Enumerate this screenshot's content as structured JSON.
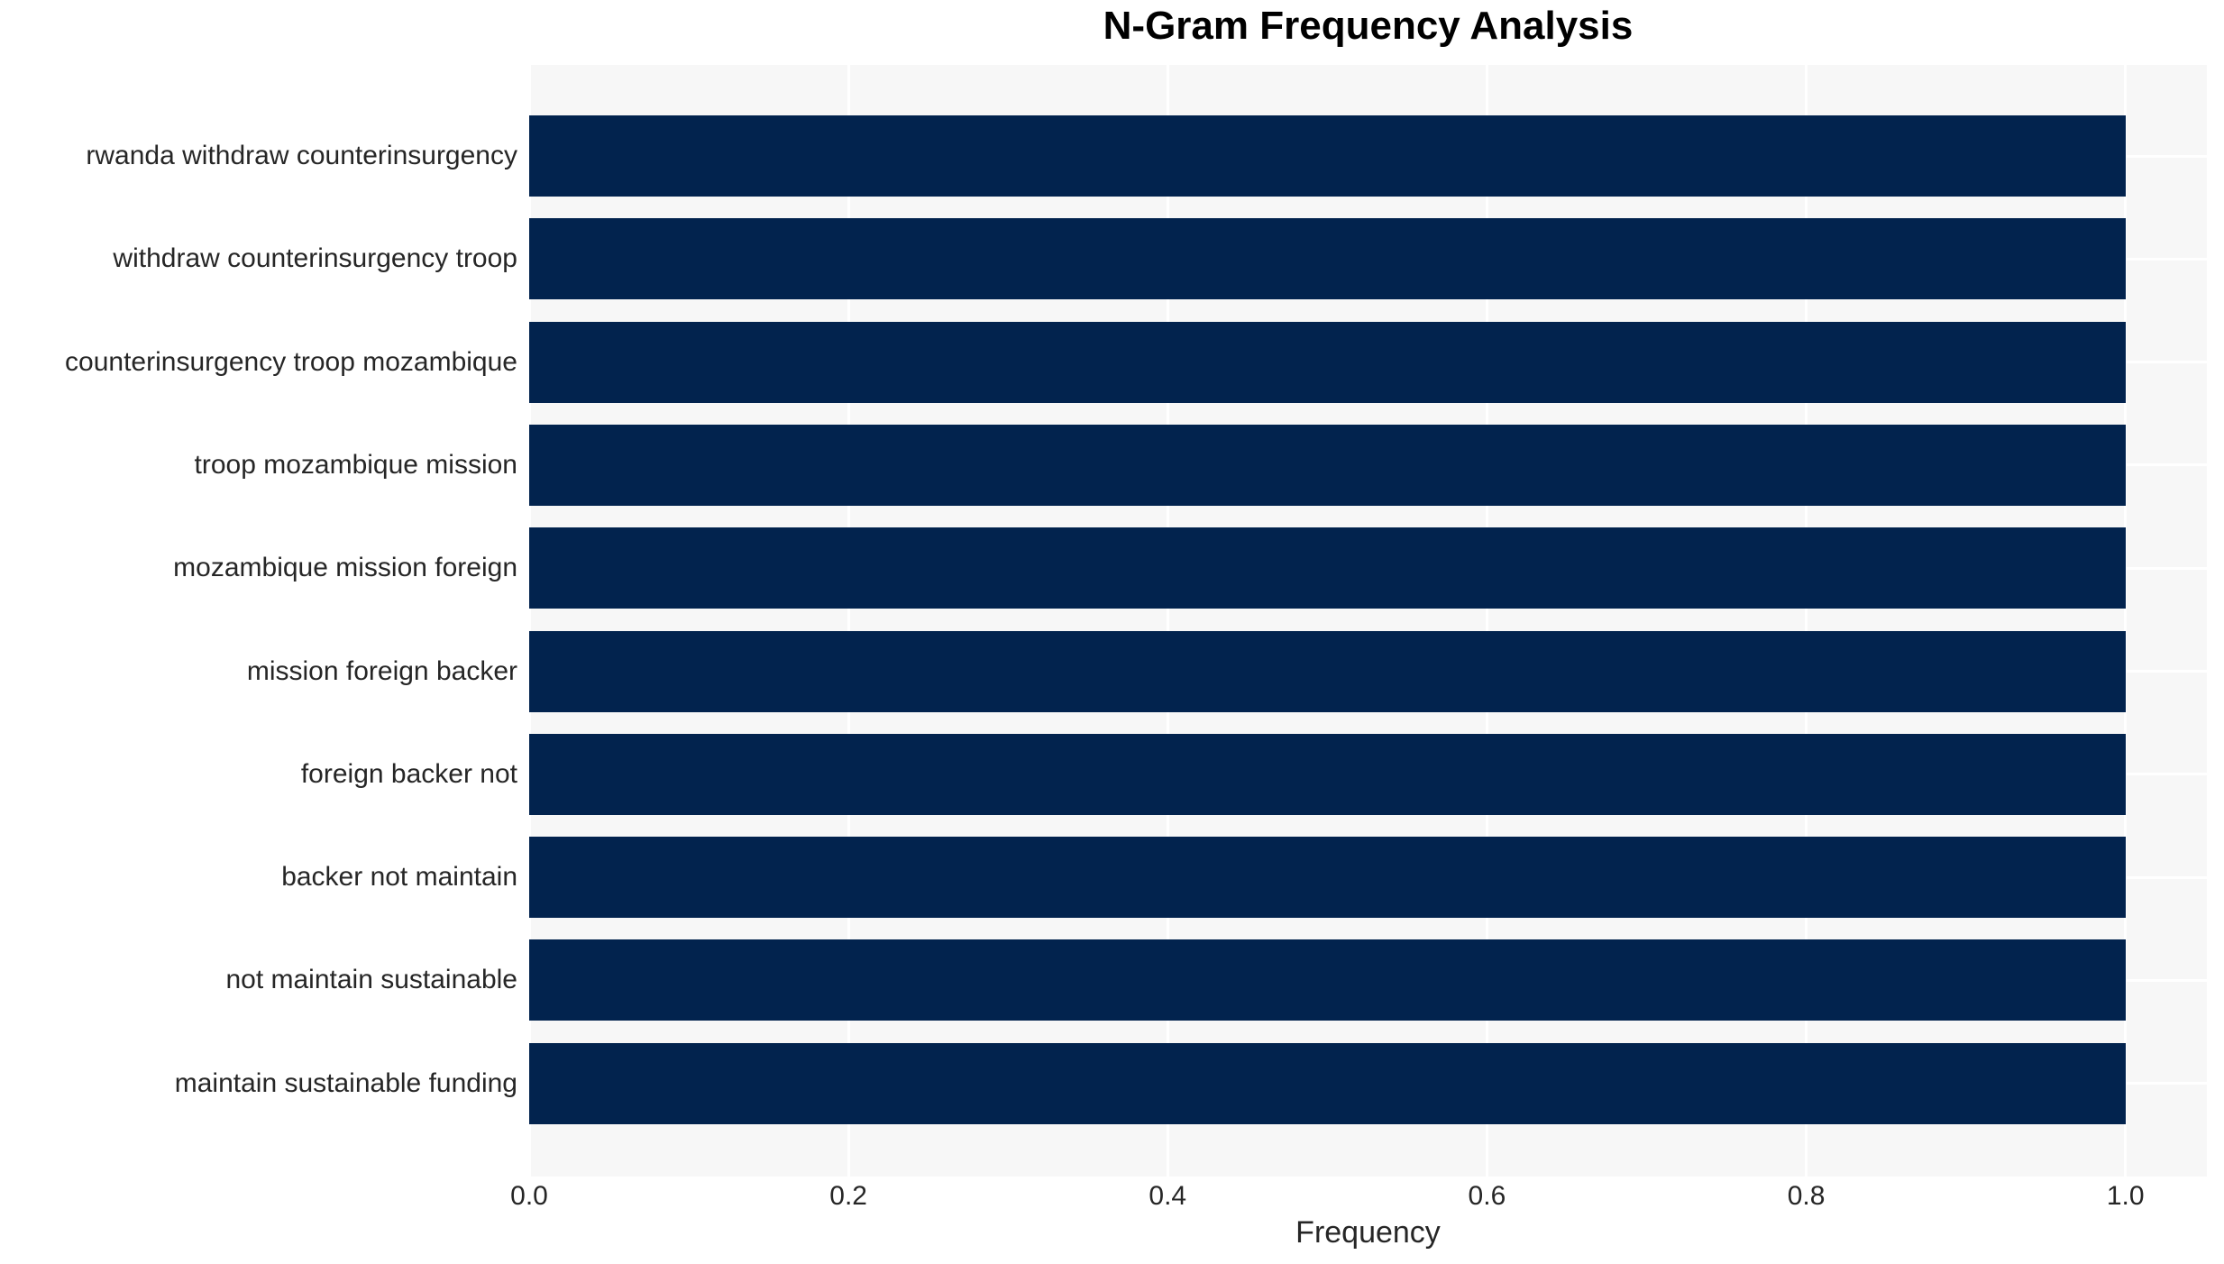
{
  "chart_data": {
    "type": "bar",
    "orientation": "horizontal",
    "title": "N-Gram Frequency Analysis",
    "xlabel": "Frequency",
    "ylabel": "",
    "categories": [
      "rwanda withdraw counterinsurgency",
      "withdraw counterinsurgency troop",
      "counterinsurgency troop mozambique",
      "troop mozambique mission",
      "mozambique mission foreign",
      "mission foreign backer",
      "foreign backer not",
      "backer not maintain",
      "not maintain sustainable",
      "maintain sustainable funding"
    ],
    "values": [
      1.0,
      1.0,
      1.0,
      1.0,
      1.0,
      1.0,
      1.0,
      1.0,
      1.0,
      1.0
    ],
    "xticks": [
      0.0,
      0.2,
      0.4,
      0.6,
      0.8,
      1.0
    ],
    "xtick_labels": [
      "0.0",
      "0.2",
      "0.4",
      "0.6",
      "0.8",
      "1.0"
    ],
    "xlim": [
      0,
      1.051
    ],
    "grid": true,
    "legend": false,
    "colors": {
      "bar": "#02234e",
      "plot_background": "#f7f7f7",
      "gridline": "#ffffff",
      "text": "#262626",
      "title": "#000000"
    }
  }
}
